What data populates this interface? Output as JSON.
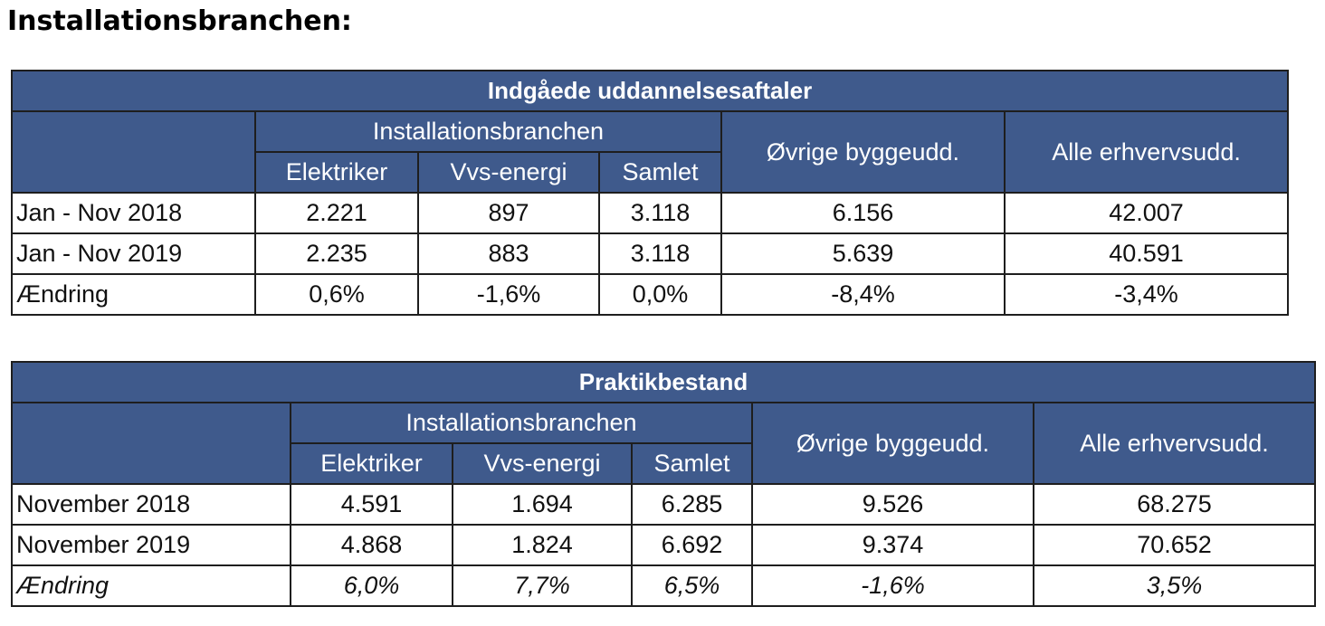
{
  "heading": "Installationsbranchen:",
  "tables": [
    {
      "title": "Indgåede uddannelsesaftaler",
      "group": "Installationsbranchen",
      "group_columns": [
        "Elektriker",
        "Vvs-energi",
        "Samlet"
      ],
      "other_columns": [
        "Øvrige byggeudd.",
        "Alle erhvervsudd."
      ],
      "rows": [
        [
          "Jan - Nov 2018",
          "2.221",
          "897",
          "3.118",
          "6.156",
          "42.007"
        ],
        [
          "Jan - Nov 2019",
          "2.235",
          "883",
          "3.118",
          "5.639",
          "40.591"
        ],
        [
          "Ændring",
          "0,6%",
          "-1,6%",
          "0,0%",
          "-8,4%",
          "-3,4%"
        ]
      ]
    },
    {
      "title": "Praktikbestand",
      "group": "Installationsbranchen",
      "group_columns": [
        "Elektriker",
        "Vvs-energi",
        "Samlet"
      ],
      "other_columns": [
        "Øvrige byggeudd.",
        "Alle erhvervsudd."
      ],
      "rows": [
        [
          "November 2018",
          "4.591",
          "1.694",
          "6.285",
          "9.526",
          "68.275"
        ],
        [
          "November 2019",
          "4.868",
          "1.824",
          "6.692",
          "9.374",
          "70.652"
        ],
        [
          "Ændring",
          "6,0%",
          "7,7%",
          "6,5%",
          "-1,6%",
          "3,5%"
        ]
      ]
    }
  ]
}
